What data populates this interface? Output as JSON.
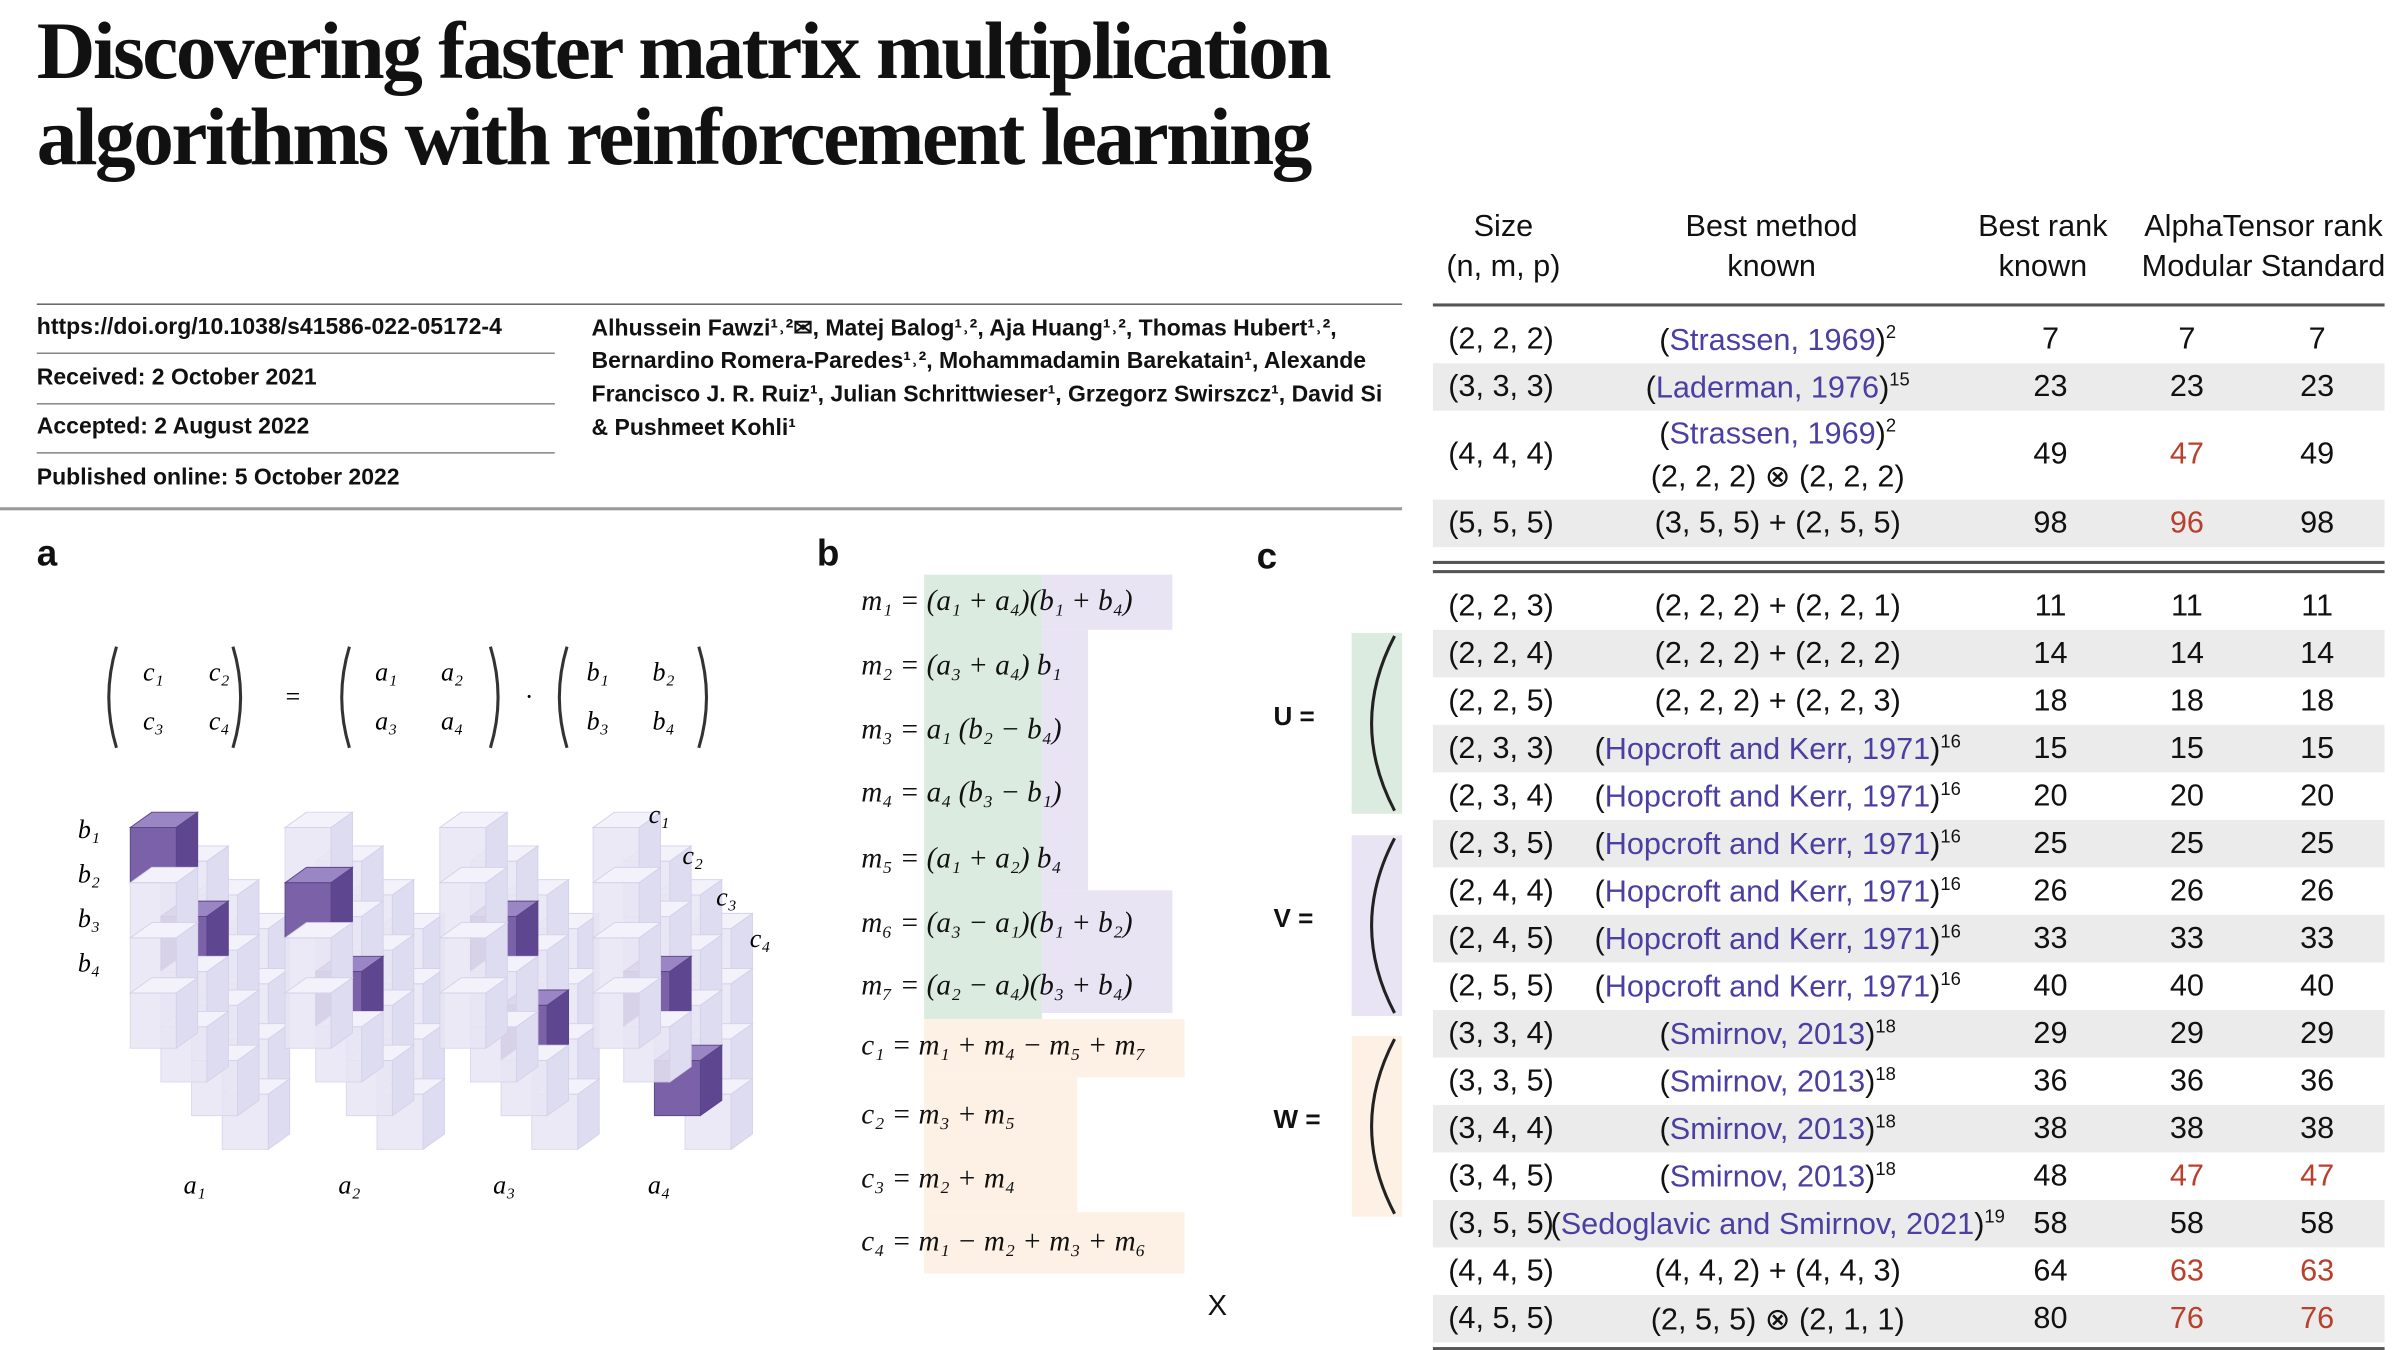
{
  "header": {
    "title_lines": [
      "Discovering faster matrix multiplication",
      "algorithms with reinforcement learning"
    ],
    "meta": [
      "https://doi.org/10.1038/s41586-022-05172-4",
      "Received: 2 October 2021",
      "Accepted: 2 August 2022",
      "Published online: 5 October 2022"
    ],
    "authors": [
      "Alhussein Fawzi¹˒²✉, Matej Balog¹˒², Aja Huang¹˒², Thomas Hubert¹˒²,",
      "Bernardino Romera-Paredes¹˒², Mohammadamin Barekatain¹, Alexande",
      "Francisco J. R. Ruiz¹, Julian Schrittwieser¹, Grzegorz Swirszcz¹, David Si",
      "& Pushmeet Kohli¹"
    ]
  },
  "figure": {
    "panels": [
      "a",
      "b",
      "c"
    ],
    "panel_a": {
      "matrices": [
        [
          "c₁",
          "c₂",
          "c₃",
          "c₄"
        ],
        [
          "a₁",
          "a₂",
          "a₃",
          "a₄"
        ],
        [
          "b₁",
          "b₂",
          "b₃",
          "b₄"
        ]
      ],
      "operators": [
        "=",
        "·"
      ],
      "b_labels": [
        "b₁",
        "b₂",
        "b₃",
        "b₄"
      ],
      "a_labels": [
        "a₁",
        "a₂",
        "a₃",
        "a₄"
      ],
      "c_labels": [
        "c₁",
        "c₂",
        "c₃",
        "c₄"
      ]
    },
    "panel_b": {
      "equations": [
        "m₁ = (a₁ + a₄)(b₁ + b₄)",
        "m₂ = (a₃ + a₄) b₁",
        "m₃ = a₁ (b₂ − b₄)",
        "m₄ = a₄ (b₃ − b₁)",
        "m₅ = (a₁ + a₂) b₄",
        "m₆ = (a₃ − a₁)(b₁ + b₂)",
        "m₇ = (a₂ − a₄)(b₃ + b₄)",
        "c₁ = m₁ + m₄ − m₅ + m₇",
        "c₂ = m₃ + m₅",
        "c₃ = m₂ + m₄",
        "c₄ = m₁ − m₂ + m₃ + m₆"
      ]
    },
    "panel_c": {
      "labels": [
        "U =",
        "V =",
        "W ="
      ]
    },
    "close": "X"
  },
  "table": {
    "link_color": "#4b3fa3",
    "highlight_color": "#b8402d",
    "shade_color": "#ebebeb",
    "header": [
      [
        "Size",
        "(n, m, p)"
      ],
      [
        "Best method",
        "known"
      ],
      [
        "Best rank",
        "known"
      ],
      [
        "AlphaTensor rank",
        "Modular Standard"
      ]
    ],
    "sections": [
      {
        "rows": [
          {
            "size": "(2, 2, 2)",
            "method": [
              "(",
              {
                "link": "Strassen, 1969"
              },
              ")",
              {
                "sup": "2"
              }
            ],
            "best": 7,
            "modular": 7,
            "standard": 7
          },
          {
            "size": "(3, 3, 3)",
            "method": [
              "(",
              {
                "link": "Laderman, 1976"
              },
              ")",
              {
                "sup": "15"
              }
            ],
            "best": 23,
            "modular": 23,
            "standard": 23
          },
          {
            "size": "(4, 4, 4)",
            "method": [
              "(",
              {
                "link": "Strassen, 1969"
              },
              ")",
              {
                "sup": "2"
              }
            ],
            "method2": "(2, 2, 2) ⊗ (2, 2, 2)",
            "best": 49,
            "modular": 47,
            "standard": 49,
            "highlight": [
              "modular"
            ]
          },
          {
            "size": "(5, 5, 5)",
            "method": [
              "(3, 5, 5) + (2, 5, 5)"
            ],
            "best": 98,
            "modular": 96,
            "standard": 98,
            "highlight": [
              "modular"
            ]
          }
        ]
      },
      {
        "rows": [
          {
            "size": "(2, 2, 3)",
            "method": [
              "(2, 2, 2) + (2, 2, 1)"
            ],
            "best": 11,
            "modular": 11,
            "standard": 11
          },
          {
            "size": "(2, 2, 4)",
            "method": [
              "(2, 2, 2) + (2, 2, 2)"
            ],
            "best": 14,
            "modular": 14,
            "standard": 14
          },
          {
            "size": "(2, 2, 5)",
            "method": [
              "(2, 2, 2) + (2, 2, 3)"
            ],
            "best": 18,
            "modular": 18,
            "standard": 18
          },
          {
            "size": "(2, 3, 3)",
            "method": [
              "(",
              {
                "link": "Hopcroft and Kerr, 1971"
              },
              ")",
              {
                "sup": "16"
              }
            ],
            "best": 15,
            "modular": 15,
            "standard": 15
          },
          {
            "size": "(2, 3, 4)",
            "method": [
              "(",
              {
                "link": "Hopcroft and Kerr, 1971"
              },
              ")",
              {
                "sup": "16"
              }
            ],
            "best": 20,
            "modular": 20,
            "standard": 20
          },
          {
            "size": "(2, 3, 5)",
            "method": [
              "(",
              {
                "link": "Hopcroft and Kerr, 1971"
              },
              ")",
              {
                "sup": "16"
              }
            ],
            "best": 25,
            "modular": 25,
            "standard": 25
          },
          {
            "size": "(2, 4, 4)",
            "method": [
              "(",
              {
                "link": "Hopcroft and Kerr, 1971"
              },
              ")",
              {
                "sup": "16"
              }
            ],
            "best": 26,
            "modular": 26,
            "standard": 26
          },
          {
            "size": "(2, 4, 5)",
            "method": [
              "(",
              {
                "link": "Hopcroft and Kerr, 1971"
              },
              ")",
              {
                "sup": "16"
              }
            ],
            "best": 33,
            "modular": 33,
            "standard": 33
          },
          {
            "size": "(2, 5, 5)",
            "method": [
              "(",
              {
                "link": "Hopcroft and Kerr, 1971"
              },
              ")",
              {
                "sup": "16"
              }
            ],
            "best": 40,
            "modular": 40,
            "standard": 40
          },
          {
            "size": "(3, 3, 4)",
            "method": [
              "(",
              {
                "link": "Smirnov, 2013"
              },
              ")",
              {
                "sup": "18"
              }
            ],
            "best": 29,
            "modular": 29,
            "standard": 29
          },
          {
            "size": "(3, 3, 5)",
            "method": [
              "(",
              {
                "link": "Smirnov, 2013"
              },
              ")",
              {
                "sup": "18"
              }
            ],
            "best": 36,
            "modular": 36,
            "standard": 36
          },
          {
            "size": "(3, 4, 4)",
            "method": [
              "(",
              {
                "link": "Smirnov, 2013"
              },
              ")",
              {
                "sup": "18"
              }
            ],
            "best": 38,
            "modular": 38,
            "standard": 38
          },
          {
            "size": "(3, 4, 5)",
            "method": [
              "(",
              {
                "link": "Smirnov, 2013"
              },
              ")",
              {
                "sup": "18"
              }
            ],
            "best": 48,
            "modular": 47,
            "standard": 47,
            "highlight": [
              "modular",
              "standard"
            ]
          },
          {
            "size": "(3, 5, 5)",
            "method": [
              "(",
              {
                "link": "Sedoglavic and Smirnov, 2021"
              },
              ")",
              {
                "sup": "19"
              }
            ],
            "best": 58,
            "modular": 58,
            "standard": 58
          },
          {
            "size": "(4, 4, 5)",
            "method": [
              "(4, 4, 2) + (4, 4, 3)"
            ],
            "best": 64,
            "modular": 63,
            "standard": 63,
            "highlight": [
              "modular",
              "standard"
            ]
          },
          {
            "size": "(4, 5, 5)",
            "method": [
              "(2, 5, 5) ⊗ (2, 1, 1)"
            ],
            "best": 80,
            "modular": 76,
            "standard": 76,
            "highlight": [
              "modular",
              "standard"
            ]
          }
        ]
      }
    ]
  }
}
